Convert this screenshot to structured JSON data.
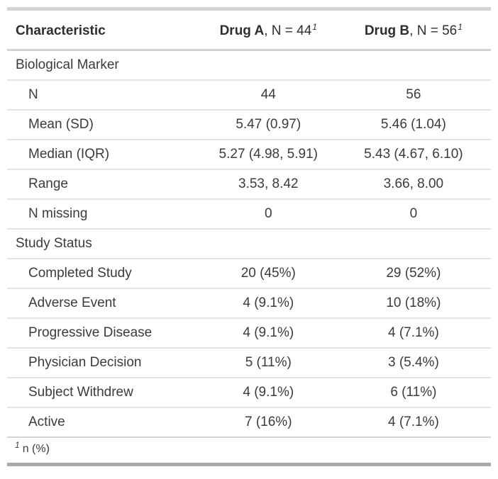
{
  "table": {
    "header": {
      "characteristic": "Characteristic",
      "col_a": {
        "name": "Drug A",
        "rest": ", N = 44",
        "footnote_mark": "1"
      },
      "col_b": {
        "name": "Drug B",
        "rest": ", N = 56",
        "footnote_mark": "1"
      }
    },
    "rows": [
      {
        "type": "group",
        "label": "Biological Marker",
        "a": "",
        "b": ""
      },
      {
        "type": "data",
        "label": "N",
        "a": "44",
        "b": "56"
      },
      {
        "type": "data",
        "label": "Mean (SD)",
        "a": "5.47 (0.97)",
        "b": "5.46 (1.04)"
      },
      {
        "type": "data",
        "label": "Median (IQR)",
        "a": "5.27 (4.98, 5.91)",
        "b": "5.43 (4.67, 6.10)"
      },
      {
        "type": "data",
        "label": "Range",
        "a": "3.53, 8.42",
        "b": "3.66, 8.00"
      },
      {
        "type": "data",
        "label": "N missing",
        "a": "0",
        "b": "0"
      },
      {
        "type": "group",
        "label": "Study Status",
        "a": "",
        "b": ""
      },
      {
        "type": "data",
        "label": "Completed Study",
        "a": "20 (45%)",
        "b": "29 (52%)"
      },
      {
        "type": "data",
        "label": "Adverse Event",
        "a": "4 (9.1%)",
        "b": "10 (18%)"
      },
      {
        "type": "data",
        "label": "Progressive Disease",
        "a": "4 (9.1%)",
        "b": "4 (7.1%)"
      },
      {
        "type": "data",
        "label": "Physician Decision",
        "a": "5 (11%)",
        "b": "3 (5.4%)"
      },
      {
        "type": "data",
        "label": "Subject Withdrew",
        "a": "4 (9.1%)",
        "b": "6 (11%)"
      },
      {
        "type": "data",
        "label": "Active",
        "a": "7 (16%)",
        "b": "4 (7.1%)"
      }
    ],
    "footnote": {
      "mark": "1",
      "text": "n (%)"
    }
  },
  "colors": {
    "text": "#3b3b3b",
    "header_text": "#2e2e2e",
    "border_top": "#d3d3d3",
    "border_bottom": "#a9a9a9",
    "row_line": "#e4e4e4",
    "section_line": "#d3d3d3"
  }
}
